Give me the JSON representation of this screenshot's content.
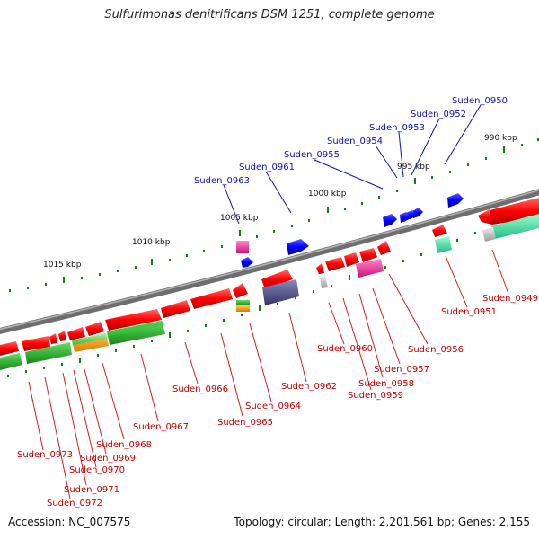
{
  "title": "Sulfurimonas denitrificans DSM 1251, complete genome",
  "footer": {
    "accession": "Accession: NC_007575",
    "topology": "Topology: circular; Length: 2,201,561 bp; Genes: 2,155"
  },
  "scale_labels": [
    "990 kbp",
    "995 kbp",
    "1000 kbp",
    "1005 kbp",
    "1010 kbp",
    "1015 kbp"
  ],
  "colors": {
    "backbone": "#808080",
    "forward_gene": "#ff0000",
    "reverse_gene": "#0000ff",
    "scale_major": "#1a7a1a",
    "scale_minor": "#1a7a1a",
    "label_forward": "#c00000",
    "label_reverse": "#1010b0",
    "cog_green": "#22aa22",
    "cog_lightgreen": "#66dd66",
    "cog_orange": "#ff9900",
    "cog_magenta": "#ff3399",
    "cog_teal": "#33dd99",
    "cog_slate": "#4a4a8a",
    "cog_gray": "#bbbbbb"
  },
  "gene_labels_outer": [
    "Suden_0950",
    "Suden_0952",
    "Suden_0953",
    "Suden_0954",
    "Suden_0955",
    "Suden_0961",
    "Suden_0963"
  ],
  "gene_labels_inner": [
    "Suden_0949",
    "Suden_0951",
    "Suden_0956",
    "Suden_0957",
    "Suden_0958",
    "Suden_0959",
    "Suden_0960",
    "Suden_0962",
    "Suden_0964",
    "Suden_0965",
    "Suden_0966",
    "Suden_0967",
    "Suden_0968",
    "Suden_0969",
    "Suden_0970",
    "Suden_0971",
    "Suden_0972",
    "Suden_0973"
  ]
}
